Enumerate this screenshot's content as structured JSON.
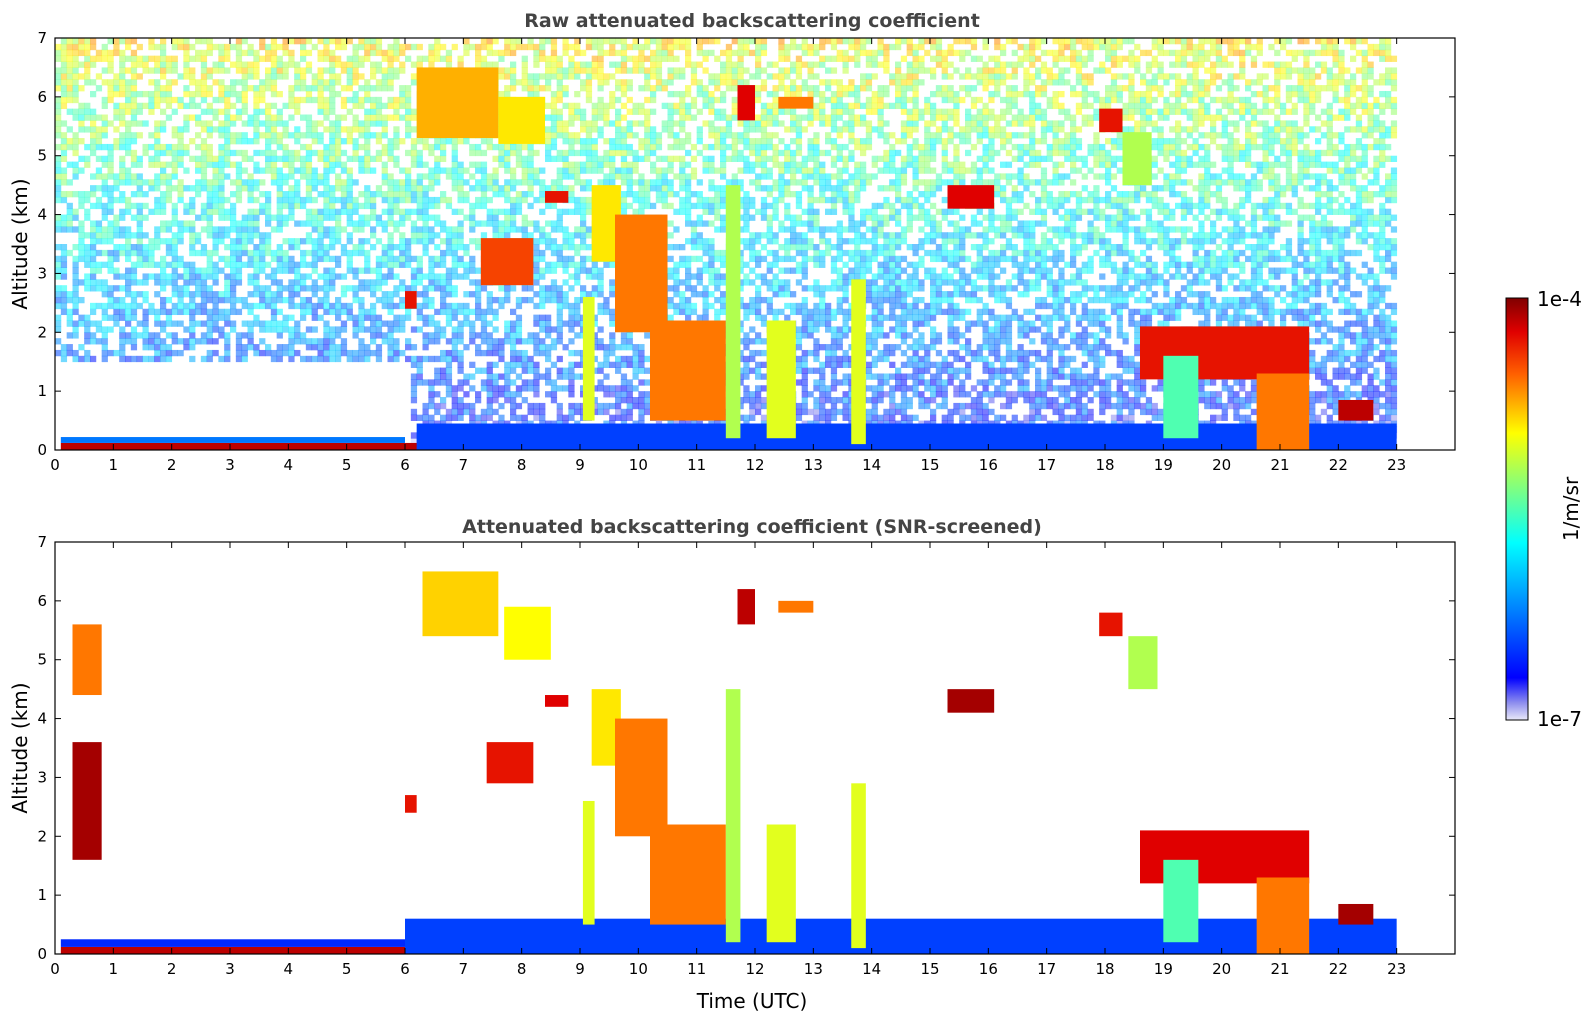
{
  "chart_data": [
    {
      "type": "heatmap",
      "title": "Raw attenuated backscattering coefficient",
      "xlabel": "",
      "ylabel": "Altitude (km)",
      "xlim": [
        0,
        24
      ],
      "ylim": [
        0,
        7
      ],
      "x_ticks": [
        "0",
        "1",
        "2",
        "3",
        "4",
        "5",
        "6",
        "7",
        "8",
        "9",
        "10",
        "11",
        "12",
        "13",
        "14",
        "15",
        "16",
        "17",
        "18",
        "19",
        "20",
        "21",
        "22",
        "23"
      ],
      "y_ticks": [
        "0",
        "1",
        "2",
        "3",
        "4",
        "5",
        "6",
        "7"
      ],
      "data_end_time": 23,
      "features": [
        {
          "t0": 0.1,
          "t1": 6.3,
          "h0": 0.0,
          "h1": 0.12,
          "level": 0.95
        },
        {
          "t0": 0.1,
          "t1": 6.0,
          "h0": 0.12,
          "h1": 0.22,
          "level": 0.25
        },
        {
          "t0": 6.2,
          "t1": 23.0,
          "h0": 0.0,
          "h1": 0.45,
          "level": 0.18
        },
        {
          "t0": 6.2,
          "t1": 7.6,
          "h0": 5.3,
          "h1": 6.5,
          "level": 0.75
        },
        {
          "t0": 7.6,
          "t1": 8.4,
          "h0": 5.2,
          "h1": 6.0,
          "level": 0.7
        },
        {
          "t0": 8.4,
          "t1": 8.8,
          "h0": 4.2,
          "h1": 4.4,
          "level": 0.9
        },
        {
          "t0": 7.3,
          "t1": 8.2,
          "h0": 2.8,
          "h1": 3.6,
          "level": 0.85
        },
        {
          "t0": 6.0,
          "t1": 6.2,
          "h0": 2.4,
          "h1": 2.7,
          "level": 0.9
        },
        {
          "t0": 9.2,
          "t1": 9.7,
          "h0": 3.2,
          "h1": 4.5,
          "level": 0.7
        },
        {
          "t0": 9.6,
          "t1": 10.5,
          "h0": 2.0,
          "h1": 4.0,
          "level": 0.8
        },
        {
          "t0": 10.2,
          "t1": 11.5,
          "h0": 0.5,
          "h1": 2.2,
          "level": 0.8
        },
        {
          "t0": 9.05,
          "t1": 9.25,
          "h0": 0.5,
          "h1": 2.6,
          "level": 0.65
        },
        {
          "t0": 11.5,
          "t1": 11.75,
          "h0": 0.2,
          "h1": 4.5,
          "level": 0.6
        },
        {
          "t0": 12.2,
          "t1": 12.7,
          "h0": 0.2,
          "h1": 2.2,
          "level": 0.65
        },
        {
          "t0": 13.65,
          "t1": 13.9,
          "h0": 0.1,
          "h1": 2.9,
          "level": 0.65
        },
        {
          "t0": 11.7,
          "t1": 12.0,
          "h0": 5.6,
          "h1": 6.2,
          "level": 0.92
        },
        {
          "t0": 12.4,
          "t1": 13.0,
          "h0": 5.8,
          "h1": 6.0,
          "level": 0.8
        },
        {
          "t0": 15.3,
          "t1": 16.1,
          "h0": 4.1,
          "h1": 4.5,
          "level": 0.92
        },
        {
          "t0": 17.9,
          "t1": 18.3,
          "h0": 5.4,
          "h1": 5.8,
          "level": 0.9
        },
        {
          "t0": 18.3,
          "t1": 18.8,
          "h0": 4.5,
          "h1": 5.4,
          "level": 0.6
        },
        {
          "t0": 18.6,
          "t1": 21.5,
          "h0": 1.2,
          "h1": 2.1,
          "level": 0.9
        },
        {
          "t0": 19.0,
          "t1": 19.6,
          "h0": 0.2,
          "h1": 1.6,
          "level": 0.5
        },
        {
          "t0": 20.6,
          "t1": 21.5,
          "h0": 0.0,
          "h1": 1.3,
          "level": 0.8
        },
        {
          "t0": 22.0,
          "t1": 22.6,
          "h0": 0.5,
          "h1": 0.85,
          "level": 0.95
        }
      ]
    },
    {
      "type": "heatmap",
      "title": "Attenuated backscattering coefficient (SNR-screened)",
      "xlabel": "Time (UTC)",
      "ylabel": "Altitude (km)",
      "xlim": [
        0,
        24
      ],
      "ylim": [
        0,
        7
      ],
      "x_ticks": [
        "0",
        "1",
        "2",
        "3",
        "4",
        "5",
        "6",
        "7",
        "8",
        "9",
        "10",
        "11",
        "12",
        "13",
        "14",
        "15",
        "16",
        "17",
        "18",
        "19",
        "20",
        "21",
        "22",
        "23"
      ],
      "y_ticks": [
        "0",
        "1",
        "2",
        "3",
        "4",
        "5",
        "6",
        "7"
      ],
      "data_end_time": 23,
      "features": [
        {
          "t0": 0.1,
          "t1": 6.0,
          "h0": 0.0,
          "h1": 0.12,
          "level": 0.95
        },
        {
          "t0": 0.1,
          "t1": 6.0,
          "h0": 0.12,
          "h1": 0.25,
          "level": 0.15
        },
        {
          "t0": 6.0,
          "t1": 23.0,
          "h0": 0.0,
          "h1": 0.6,
          "level": 0.18
        },
        {
          "t0": 6.3,
          "t1": 7.6,
          "h0": 5.4,
          "h1": 6.5,
          "level": 0.72
        },
        {
          "t0": 7.7,
          "t1": 8.5,
          "h0": 5.0,
          "h1": 5.9,
          "level": 0.68
        },
        {
          "t0": 8.4,
          "t1": 8.8,
          "h0": 4.2,
          "h1": 4.4,
          "level": 0.92
        },
        {
          "t0": 7.4,
          "t1": 8.2,
          "h0": 2.9,
          "h1": 3.6,
          "level": 0.9
        },
        {
          "t0": 6.0,
          "t1": 6.2,
          "h0": 2.4,
          "h1": 2.7,
          "level": 0.9
        },
        {
          "t0": 9.2,
          "t1": 9.7,
          "h0": 3.2,
          "h1": 4.5,
          "level": 0.7
        },
        {
          "t0": 9.6,
          "t1": 10.5,
          "h0": 2.0,
          "h1": 4.0,
          "level": 0.8
        },
        {
          "t0": 10.2,
          "t1": 11.5,
          "h0": 0.5,
          "h1": 2.2,
          "level": 0.8
        },
        {
          "t0": 9.05,
          "t1": 9.25,
          "h0": 0.5,
          "h1": 2.6,
          "level": 0.65
        },
        {
          "t0": 11.5,
          "t1": 11.75,
          "h0": 0.2,
          "h1": 4.5,
          "level": 0.6
        },
        {
          "t0": 12.2,
          "t1": 12.7,
          "h0": 0.2,
          "h1": 2.2,
          "level": 0.65
        },
        {
          "t0": 13.65,
          "t1": 13.9,
          "h0": 0.1,
          "h1": 2.9,
          "level": 0.65
        },
        {
          "t0": 11.7,
          "t1": 12.0,
          "h0": 5.6,
          "h1": 6.2,
          "level": 0.95
        },
        {
          "t0": 12.4,
          "t1": 13.0,
          "h0": 5.8,
          "h1": 6.0,
          "level": 0.8
        },
        {
          "t0": 15.3,
          "t1": 16.1,
          "h0": 4.1,
          "h1": 4.5,
          "level": 0.97
        },
        {
          "t0": 17.9,
          "t1": 18.3,
          "h0": 5.4,
          "h1": 5.8,
          "level": 0.9
        },
        {
          "t0": 18.4,
          "t1": 18.9,
          "h0": 4.5,
          "h1": 5.4,
          "level": 0.6
        },
        {
          "t0": 18.6,
          "t1": 21.5,
          "h0": 1.2,
          "h1": 2.1,
          "level": 0.92
        },
        {
          "t0": 19.0,
          "t1": 19.6,
          "h0": 0.2,
          "h1": 1.6,
          "level": 0.5
        },
        {
          "t0": 20.6,
          "t1": 21.5,
          "h0": 0.0,
          "h1": 1.3,
          "level": 0.8
        },
        {
          "t0": 22.0,
          "t1": 22.6,
          "h0": 0.5,
          "h1": 0.85,
          "level": 0.97
        },
        {
          "t0": 0.3,
          "t1": 0.8,
          "h0": 1.6,
          "h1": 3.6,
          "level": 0.97
        },
        {
          "t0": 0.3,
          "t1": 0.8,
          "h0": 4.4,
          "h1": 5.6,
          "level": 0.8
        }
      ]
    }
  ],
  "colorbar": {
    "label": "1/m/sr",
    "max_label": "1e-4",
    "min_label": "1e-7",
    "colormap": "jet"
  }
}
